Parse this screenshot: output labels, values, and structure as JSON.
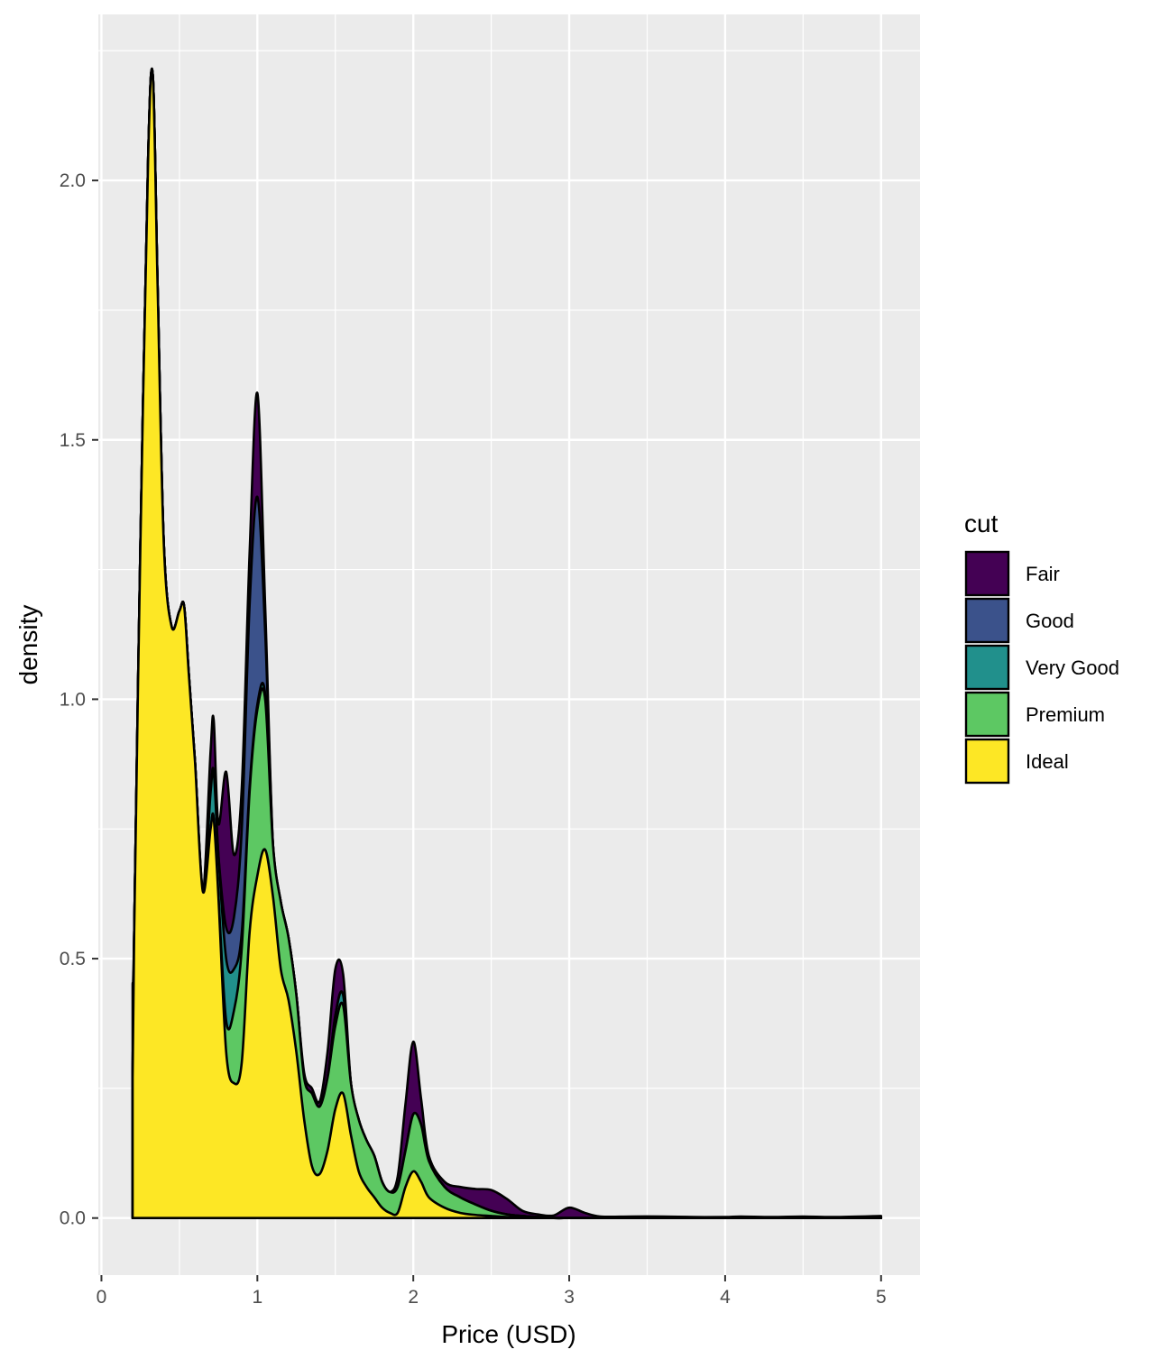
{
  "chart_data": {
    "type": "area",
    "stacking": "stacked",
    "xlabel": "Price (USD)",
    "ylabel": "density",
    "xlim": [
      -0.02,
      5.25
    ],
    "ylim": [
      -0.11,
      2.32
    ],
    "x_ticks": [
      0,
      1,
      2,
      3,
      4,
      5
    ],
    "x_tick_labels": [
      "0",
      "1",
      "2",
      "3",
      "4",
      "5"
    ],
    "y_ticks": [
      0.0,
      0.5,
      1.0,
      1.5,
      2.0
    ],
    "y_tick_labels": [
      "0.0",
      "0.5",
      "1.0",
      "1.5",
      "2.0"
    ],
    "grid": true,
    "legend": {
      "title": "cut",
      "position": "right"
    },
    "x": [
      0.2,
      0.21,
      0.25,
      0.3,
      0.33,
      0.36,
      0.4,
      0.45,
      0.5,
      0.53,
      0.56,
      0.6,
      0.65,
      0.7,
      0.72,
      0.75,
      0.8,
      0.85,
      0.9,
      0.95,
      1.0,
      1.05,
      1.1,
      1.15,
      1.2,
      1.25,
      1.3,
      1.35,
      1.4,
      1.45,
      1.5,
      1.55,
      1.6,
      1.65,
      1.7,
      1.75,
      1.8,
      1.85,
      1.9,
      1.95,
      2.0,
      2.05,
      2.1,
      2.2,
      2.3,
      2.4,
      2.5,
      2.6,
      2.7,
      2.8,
      2.9,
      3.0,
      3.1,
      3.2,
      3.4,
      3.6,
      3.8,
      4.0,
      4.1,
      4.3,
      4.5,
      4.7,
      5.0
    ],
    "series": [
      {
        "name": "Ideal",
        "color": "#FDE725",
        "values": [
          0.27,
          0.55,
          1.3,
          2.05,
          2.2,
          1.8,
          1.3,
          1.14,
          1.17,
          1.18,
          1.05,
          0.88,
          0.63,
          0.75,
          0.77,
          0.62,
          0.32,
          0.26,
          0.3,
          0.55,
          0.66,
          0.71,
          0.62,
          0.48,
          0.42,
          0.32,
          0.19,
          0.1,
          0.085,
          0.13,
          0.21,
          0.24,
          0.16,
          0.09,
          0.06,
          0.04,
          0.02,
          0.01,
          0.01,
          0.06,
          0.09,
          0.07,
          0.04,
          0.02,
          0.01,
          0.006,
          0.004,
          0.002,
          0.001,
          0.0,
          0.0,
          0.0,
          0.0,
          0.0,
          0.0,
          0.0,
          0.0,
          0.0,
          0.0,
          0.0,
          0.0,
          0.0,
          0.0
        ]
      },
      {
        "name": "Premium",
        "color": "#5DC863",
        "values": [
          0.01,
          0.0,
          0.0,
          0.0,
          0.0,
          0.0,
          0.0,
          0.0,
          0.0,
          0.0,
          0.0,
          0.0,
          0.0,
          0.0,
          0.0,
          0.0,
          0.06,
          0.14,
          0.22,
          0.27,
          0.32,
          0.29,
          0.1,
          0.13,
          0.12,
          0.11,
          0.08,
          0.14,
          0.13,
          0.14,
          0.16,
          0.17,
          0.1,
          0.1,
          0.09,
          0.08,
          0.05,
          0.04,
          0.05,
          0.07,
          0.11,
          0.11,
          0.07,
          0.04,
          0.03,
          0.02,
          0.01,
          0.005,
          0.003,
          0.002,
          0.0,
          0.0,
          0.0,
          0.0,
          0.0,
          0.0,
          0.0,
          0.0,
          0.0,
          0.0,
          0.0,
          0.0,
          0.0
        ]
      },
      {
        "name": "Very Good",
        "color": "#21908C",
        "values": [
          0.0,
          0.0,
          0.0,
          0.0,
          0.0,
          0.0,
          0.0,
          0.0,
          0.0,
          0.0,
          0.0,
          0.0,
          0.0,
          0.07,
          0.09,
          0.08,
          0.12,
          0.08,
          0.03,
          0.01,
          0.01,
          0.01,
          0.0,
          0.0,
          0.0,
          0.0,
          0.0,
          0.0,
          0.0,
          0.0,
          0.02,
          0.02,
          0.0,
          0.0,
          0.0,
          0.0,
          0.0,
          0.0,
          0.0,
          0.0,
          0.0,
          0.0,
          0.0,
          0.0,
          0.0,
          0.0,
          0.0,
          0.0,
          0.0,
          0.0,
          0.0,
          0.0,
          0.0,
          0.0,
          0.0,
          0.0,
          0.0,
          0.0,
          0.0,
          0.0,
          0.0,
          0.0,
          0.0
        ]
      },
      {
        "name": "Good",
        "color": "#3B528B",
        "values": [
          0.0,
          0.0,
          0.0,
          0.0,
          0.0,
          0.0,
          0.0,
          0.0,
          0.0,
          0.0,
          0.0,
          0.0,
          0.0,
          0.0,
          0.0,
          0.0,
          0.06,
          0.1,
          0.2,
          0.35,
          0.4,
          0.12,
          0.0,
          0.0,
          0.0,
          0.0,
          0.0,
          0.0,
          0.0,
          0.0,
          0.0,
          0.0,
          0.0,
          0.0,
          0.0,
          0.0,
          0.0,
          0.0,
          0.0,
          0.0,
          0.0,
          0.0,
          0.0,
          0.0,
          0.0,
          0.0,
          0.0,
          0.0,
          0.0,
          0.0,
          0.0,
          0.0,
          0.0,
          0.0,
          0.0,
          0.0,
          0.0,
          0.0,
          0.0,
          0.0,
          0.0,
          0.0,
          0.0
        ]
      },
      {
        "name": "Fair",
        "color": "#440154",
        "values": [
          0.17,
          0.0,
          0.0,
          0.0,
          0.0,
          0.0,
          0.0,
          0.0,
          0.0,
          0.0,
          0.0,
          0.0,
          0.0,
          0.08,
          0.1,
          0.06,
          0.3,
          0.12,
          0.08,
          0.1,
          0.2,
          0.05,
          0.0,
          0.0,
          0.0,
          0.0,
          0.01,
          0.01,
          0.01,
          0.05,
          0.09,
          0.04,
          0.0,
          0.0,
          0.0,
          0.0,
          0.0,
          0.0,
          0.02,
          0.09,
          0.14,
          0.05,
          0.01,
          0.01,
          0.02,
          0.03,
          0.04,
          0.03,
          0.01,
          0.005,
          0.005,
          0.02,
          0.01,
          0.003,
          0.003,
          0.003,
          0.002,
          0.002,
          0.003,
          0.002,
          0.003,
          0.002,
          0.004
        ]
      }
    ]
  }
}
